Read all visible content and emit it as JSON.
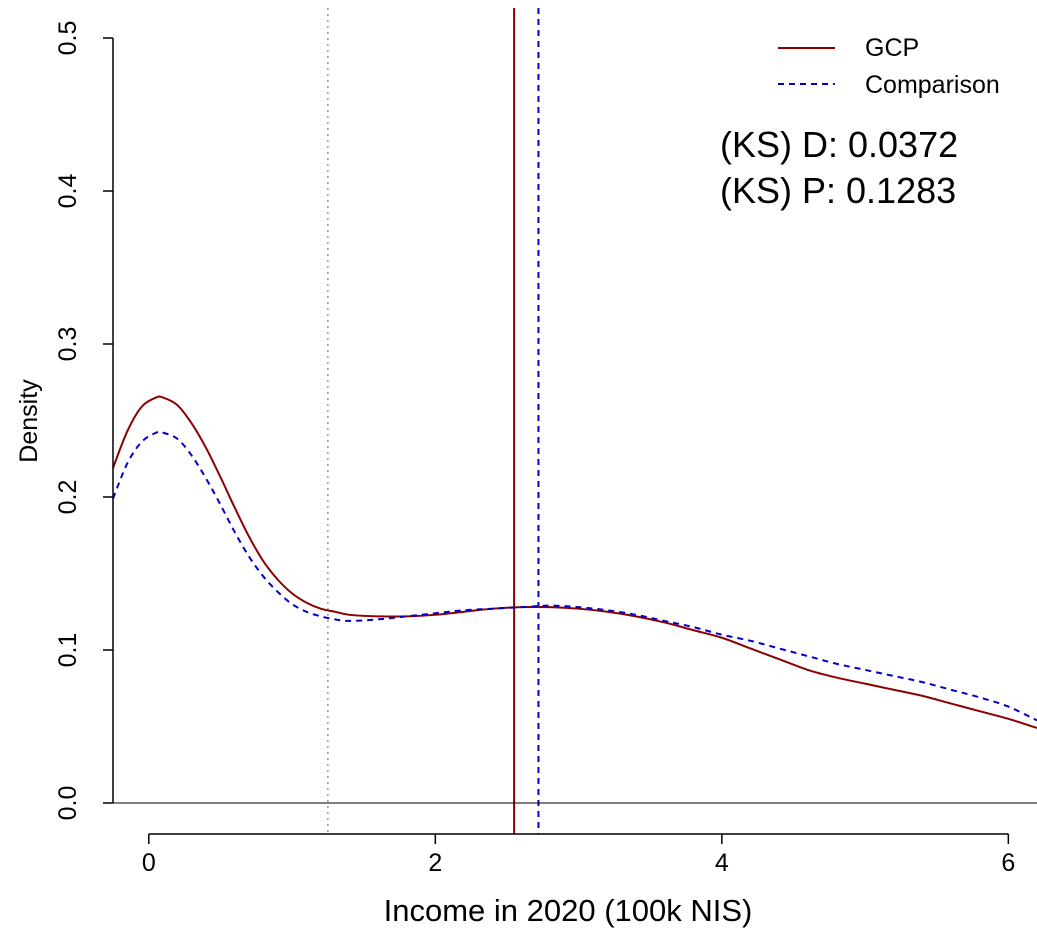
{
  "chart_data": {
    "type": "line",
    "title": "",
    "xlabel": "Income in 2020 (100k NIS)",
    "ylabel": "Density",
    "xlim": [
      -0.25,
      6.2
    ],
    "ylim": [
      0,
      0.5
    ],
    "xticks": [
      0,
      2,
      4,
      6
    ],
    "xtick_labels": [
      "0",
      "2",
      "4",
      "6"
    ],
    "yticks": [
      0.0,
      0.1,
      0.2,
      0.3,
      0.4,
      0.5
    ],
    "ytick_labels": [
      "0.0",
      "0.1",
      "0.2",
      "0.3",
      "0.4",
      "0.5"
    ],
    "grid": false,
    "legend_position": "top-right",
    "series": [
      {
        "name": "GCP",
        "color": "#8b0000",
        "line_style": "solid",
        "x": [
          -0.25,
          -0.15,
          -0.05,
          0.05,
          0.1,
          0.2,
          0.3,
          0.4,
          0.5,
          0.6,
          0.7,
          0.8,
          0.9,
          1.0,
          1.1,
          1.2,
          1.3,
          1.4,
          1.6,
          1.8,
          2.0,
          2.2,
          2.4,
          2.6,
          2.8,
          3.0,
          3.2,
          3.4,
          3.6,
          3.8,
          4.0,
          4.2,
          4.4,
          4.6,
          4.8,
          5.0,
          5.2,
          5.4,
          5.6,
          5.8,
          6.0,
          6.2
        ],
        "y": [
          0.219,
          0.243,
          0.259,
          0.265,
          0.265,
          0.26,
          0.248,
          0.232,
          0.213,
          0.193,
          0.174,
          0.158,
          0.146,
          0.137,
          0.131,
          0.127,
          0.125,
          0.123,
          0.122,
          0.122,
          0.123,
          0.125,
          0.127,
          0.128,
          0.128,
          0.127,
          0.125,
          0.122,
          0.118,
          0.113,
          0.108,
          0.101,
          0.094,
          0.087,
          0.082,
          0.078,
          0.074,
          0.07,
          0.065,
          0.06,
          0.055,
          0.049
        ]
      },
      {
        "name": "Comparison",
        "color": "#0000cd",
        "line_style": "dashed",
        "x": [
          -0.25,
          -0.15,
          -0.05,
          0.05,
          0.1,
          0.2,
          0.3,
          0.4,
          0.5,
          0.6,
          0.7,
          0.8,
          0.9,
          1.0,
          1.1,
          1.2,
          1.3,
          1.4,
          1.6,
          1.8,
          2.0,
          2.2,
          2.4,
          2.6,
          2.8,
          3.0,
          3.2,
          3.4,
          3.6,
          3.8,
          4.0,
          4.2,
          4.4,
          4.6,
          4.8,
          5.0,
          5.2,
          5.4,
          5.6,
          5.8,
          6.0,
          6.2
        ],
        "y": [
          0.199,
          0.222,
          0.236,
          0.242,
          0.242,
          0.238,
          0.227,
          0.212,
          0.195,
          0.177,
          0.161,
          0.148,
          0.138,
          0.13,
          0.125,
          0.122,
          0.12,
          0.119,
          0.12,
          0.122,
          0.124,
          0.126,
          0.127,
          0.128,
          0.129,
          0.128,
          0.126,
          0.123,
          0.119,
          0.115,
          0.11,
          0.106,
          0.101,
          0.096,
          0.091,
          0.087,
          0.083,
          0.079,
          0.074,
          0.069,
          0.063,
          0.054
        ]
      }
    ],
    "vertical_lines": [
      {
        "x": 1.25,
        "color": "#999999",
        "line_style": "dotted"
      },
      {
        "x": 2.55,
        "color": "#8b0000",
        "line_style": "solid"
      },
      {
        "x": 2.72,
        "color": "#0000cd",
        "line_style": "dashed"
      }
    ],
    "annotations": [
      "(KS) D: 0.0372",
      "(KS) P: 0.1283"
    ]
  }
}
